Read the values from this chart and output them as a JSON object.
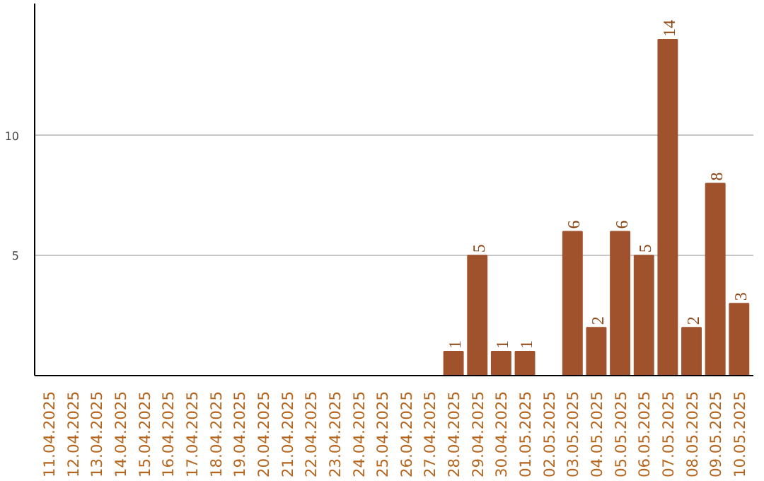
{
  "chart_data": {
    "type": "bar",
    "categories": [
      "11.04.2025",
      "12.04.2025",
      "13.04.2025",
      "14.04.2025",
      "15.04.2025",
      "16.04.2025",
      "17.04.2025",
      "18.04.2025",
      "19.04.2025",
      "20.04.2025",
      "21.04.2025",
      "22.04.2025",
      "23.04.2025",
      "24.04.2025",
      "25.04.2025",
      "26.04.2025",
      "27.04.2025",
      "28.04.2025",
      "29.04.2025",
      "30.04.2025",
      "01.05.2025",
      "02.05.2025",
      "03.05.2025",
      "04.05.2025",
      "05.05.2025",
      "06.05.2025",
      "07.05.2025",
      "08.05.2025",
      "09.05.2025",
      "10.05.2025"
    ],
    "values": [
      0,
      0,
      0,
      0,
      0,
      0,
      0,
      0,
      0,
      0,
      0,
      0,
      0,
      0,
      0,
      0,
      0,
      1,
      5,
      1,
      1,
      0,
      6,
      2,
      6,
      5,
      14,
      2,
      8,
      3
    ],
    "value_labels": [
      null,
      null,
      null,
      null,
      null,
      null,
      null,
      null,
      null,
      null,
      null,
      null,
      null,
      null,
      null,
      null,
      null,
      "1",
      "5",
      "1",
      "1",
      null,
      "6",
      "2",
      "6",
      "5",
      "14",
      "2",
      "8",
      "3"
    ],
    "color": "#a0522d",
    "ylim": [
      0,
      15.5
    ],
    "yticks": [
      5,
      10
    ],
    "grid": "y"
  }
}
